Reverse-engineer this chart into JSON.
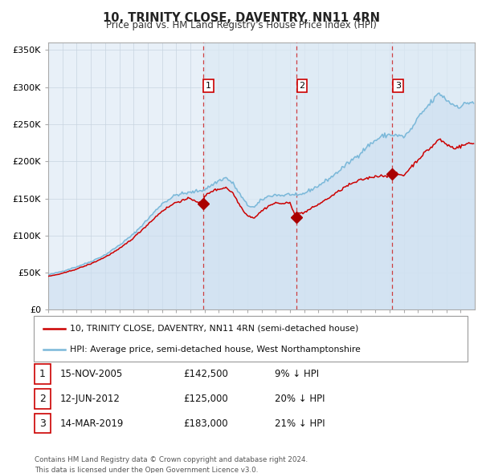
{
  "title": "10, TRINITY CLOSE, DAVENTRY, NN11 4RN",
  "subtitle": "Price paid vs. HM Land Registry's House Price Index (HPI)",
  "legend_line1": "10, TRINITY CLOSE, DAVENTRY, NN11 4RN (semi-detached house)",
  "legend_line2": "HPI: Average price, semi-detached house, West Northamptonshire",
  "footer": "Contains HM Land Registry data © Crown copyright and database right 2024.\nThis data is licensed under the Open Government Licence v3.0.",
  "sale_dates_decimal": [
    2005.876,
    2012.452,
    2019.204
  ],
  "sale_prices": [
    142500,
    125000,
    183000
  ],
  "sale_labels": [
    "1",
    "2",
    "3"
  ],
  "sale_annotations": [
    "15-NOV-2005",
    "12-JUN-2012",
    "14-MAR-2019"
  ],
  "sale_price_labels": [
    "£142,500",
    "£125,000",
    "£183,000"
  ],
  "sale_hpi_labels": [
    "9% ↓ HPI",
    "20% ↓ HPI",
    "21% ↓ HPI"
  ],
  "hpi_color": "#7ab8d9",
  "hpi_fill_color": "#dce9f5",
  "price_color": "#cc0000",
  "dashed_line_color": "#cc2222",
  "marker_color": "#aa0000",
  "bg_color": "#f0f4fa",
  "plot_bg_color": "#e8f0f8",
  "background_color": "#ffffff",
  "grid_color": "#c8d4e0",
  "ylim": [
    0,
    360000
  ],
  "xlim": [
    1995,
    2025
  ],
  "ytick_values": [
    0,
    50000,
    100000,
    150000,
    200000,
    250000,
    300000,
    350000
  ],
  "ytick_labels": [
    "£0",
    "£50K",
    "£100K",
    "£150K",
    "£200K",
    "£250K",
    "£300K",
    "£350K"
  ]
}
